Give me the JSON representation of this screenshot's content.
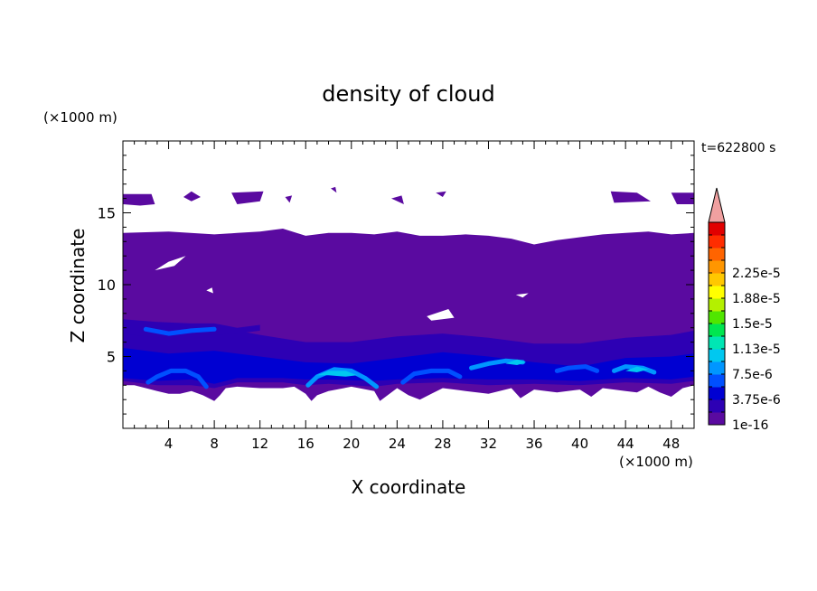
{
  "chart_data": {
    "type": "heatmap",
    "title": "density of cloud",
    "xlabel": "X coordinate",
    "ylabel": "Z coordinate",
    "x_unit": "(×1000 m)",
    "y_unit": "(×1000 m)",
    "time_label": "t=622800 s",
    "xlim": [
      0,
      50
    ],
    "ylim": [
      0,
      20
    ],
    "x_ticks": [
      4,
      8,
      12,
      16,
      20,
      24,
      28,
      32,
      36,
      40,
      44,
      48
    ],
    "y_ticks": [
      5,
      10,
      15
    ],
    "colorbar": {
      "labels": [
        "1e-16",
        "3.75e-6",
        "7.5e-6",
        "1.13e-5",
        "1.5e-5",
        "1.88e-5",
        "2.25e-5"
      ],
      "colors": [
        "#5a0aa0",
        "#2d00b4",
        "#0000d2",
        "#0050ff",
        "#0096ff",
        "#00c8f0",
        "#00e6b4",
        "#00e650",
        "#50e600",
        "#b4f000",
        "#ffff00",
        "#ffc800",
        "#ff9600",
        "#ff6400",
        "#ff2d00",
        "#e10000"
      ],
      "extend_color": "#f0a0a0"
    },
    "layers": {
      "main_cloud": {
        "level": "1e-16",
        "color": "#5a0aa0",
        "upper": [
          [
            0,
            13.6
          ],
          [
            4,
            13.7
          ],
          [
            8,
            13.5
          ],
          [
            10,
            13.6
          ],
          [
            12,
            13.7
          ],
          [
            14,
            13.9
          ],
          [
            16,
            13.4
          ],
          [
            18,
            13.6
          ],
          [
            20,
            13.6
          ],
          [
            22,
            13.5
          ],
          [
            24,
            13.7
          ],
          [
            26,
            13.4
          ],
          [
            28,
            13.4
          ],
          [
            30,
            13.5
          ],
          [
            32,
            13.4
          ],
          [
            34,
            13.2
          ],
          [
            36,
            12.8
          ],
          [
            38,
            13.1
          ],
          [
            40,
            13.3
          ],
          [
            42,
            13.5
          ],
          [
            44,
            13.6
          ],
          [
            46,
            13.7
          ],
          [
            48,
            13.5
          ],
          [
            50,
            13.6
          ]
        ],
        "lower": [
          [
            0,
            3.0
          ],
          [
            1,
            3.0
          ],
          [
            2,
            2.8
          ],
          [
            3,
            2.6
          ],
          [
            4,
            2.4
          ],
          [
            5,
            2.4
          ],
          [
            6,
            2.6
          ],
          [
            7,
            2.3
          ],
          [
            8,
            1.9
          ],
          [
            8.5,
            2.3
          ],
          [
            9,
            2.8
          ],
          [
            10,
            2.9
          ],
          [
            12,
            2.8
          ],
          [
            14,
            2.8
          ],
          [
            15,
            2.9
          ],
          [
            16,
            2.4
          ],
          [
            16.5,
            1.9
          ],
          [
            17,
            2.3
          ],
          [
            18,
            2.6
          ],
          [
            20,
            2.9
          ],
          [
            22,
            2.6
          ],
          [
            22.5,
            1.9
          ],
          [
            23,
            2.2
          ],
          [
            24,
            2.8
          ],
          [
            25,
            2.3
          ],
          [
            26,
            2.0
          ],
          [
            27,
            2.4
          ],
          [
            28,
            2.8
          ],
          [
            30,
            2.6
          ],
          [
            32,
            2.4
          ],
          [
            34,
            2.8
          ],
          [
            34.8,
            2.1
          ],
          [
            36,
            2.7
          ],
          [
            38,
            2.5
          ],
          [
            40,
            2.7
          ],
          [
            41,
            2.2
          ],
          [
            42,
            2.8
          ],
          [
            44,
            2.6
          ],
          [
            45,
            2.5
          ],
          [
            46,
            2.9
          ],
          [
            47,
            2.5
          ],
          [
            48,
            2.2
          ],
          [
            49,
            2.8
          ],
          [
            50,
            3.0
          ]
        ]
      },
      "bands": [
        {
          "level": "3.75e-6",
          "color": "#2d00b4",
          "upper": [
            [
              0,
              7.2
            ],
            [
              4,
              7.0
            ],
            [
              8,
              7.1
            ],
            [
              12,
              6.5
            ],
            [
              16,
              6.0
            ],
            [
              20,
              6.0
            ],
            [
              24,
              6.4
            ],
            [
              28,
              6.6
            ],
            [
              32,
              6.3
            ],
            [
              36,
              5.9
            ],
            [
              40,
              5.9
            ],
            [
              44,
              6.3
            ],
            [
              48,
              6.5
            ],
            [
              50,
              6.8
            ]
          ],
          "lower": [
            [
              0,
              3.3
            ],
            [
              3,
              3.0
            ],
            [
              6,
              3.0
            ],
            [
              8,
              2.8
            ],
            [
              10,
              3.2
            ],
            [
              14,
              3.2
            ],
            [
              16,
              3.0
            ],
            [
              18,
              3.1
            ],
            [
              22,
              2.9
            ],
            [
              24,
              3.1
            ],
            [
              28,
              3.2
            ],
            [
              32,
              3.0
            ],
            [
              36,
              3.1
            ],
            [
              40,
              3.0
            ],
            [
              44,
              3.2
            ],
            [
              48,
              3.1
            ],
            [
              50,
              3.3
            ]
          ]
        },
        {
          "level": "7.5e-6",
          "color": "#0000d2",
          "upper": [
            [
              0,
              5.6
            ],
            [
              4,
              5.2
            ],
            [
              8,
              5.4
            ],
            [
              12,
              5.0
            ],
            [
              16,
              4.6
            ],
            [
              20,
              4.5
            ],
            [
              24,
              4.9
            ],
            [
              28,
              5.3
            ],
            [
              32,
              5.0
            ],
            [
              36,
              4.6
            ],
            [
              40,
              4.3
            ],
            [
              44,
              4.9
            ],
            [
              48,
              5.0
            ],
            [
              50,
              5.2
            ]
          ],
          "lower": [
            [
              0,
              3.5
            ],
            [
              3,
              3.3
            ],
            [
              6,
              3.4
            ],
            [
              8,
              3.1
            ],
            [
              10,
              3.5
            ],
            [
              14,
              3.5
            ],
            [
              16,
              3.4
            ],
            [
              18,
              3.4
            ],
            [
              22,
              3.3
            ],
            [
              24,
              3.4
            ],
            [
              28,
              3.5
            ],
            [
              32,
              3.4
            ],
            [
              36,
              3.4
            ],
            [
              40,
              3.3
            ],
            [
              44,
              3.5
            ],
            [
              48,
              3.4
            ],
            [
              50,
              3.6
            ]
          ]
        }
      ],
      "upper_band": {
        "level": "3.75e-6",
        "color": "#2d00b4",
        "upper": [
          [
            0,
            7.6
          ],
          [
            3,
            7.4
          ],
          [
            6,
            7.3
          ],
          [
            8,
            7.3
          ],
          [
            10,
            7.0
          ],
          [
            12,
            7.2
          ]
        ],
        "lower": [
          [
            0,
            6.6
          ],
          [
            3,
            6.3
          ],
          [
            6,
            6.5
          ],
          [
            8,
            6.5
          ],
          [
            10,
            6.6
          ],
          [
            12,
            6.8
          ]
        ]
      },
      "arcs": [
        {
          "color": "#0050ff",
          "points": [
            [
              2.2,
              3.2
            ],
            [
              3,
              3.6
            ],
            [
              4.2,
              4.0
            ],
            [
              5.5,
              4.0
            ],
            [
              6.6,
              3.6
            ],
            [
              7.3,
              2.9
            ]
          ]
        },
        {
          "color": "#0096ff",
          "points": [
            [
              16.2,
              3.0
            ],
            [
              17,
              3.6
            ],
            [
              18.5,
              4.1
            ],
            [
              20,
              4.0
            ],
            [
              21.2,
              3.5
            ],
            [
              22.2,
              2.9
            ]
          ]
        },
        {
          "color": "#0050ff",
          "points": [
            [
              24.5,
              3.2
            ],
            [
              25.5,
              3.8
            ],
            [
              27,
              4.0
            ],
            [
              28.5,
              4.0
            ],
            [
              29.5,
              3.6
            ]
          ]
        },
        {
          "color": "#0096ff",
          "points": [
            [
              30.5,
              4.2
            ],
            [
              32,
              4.5
            ],
            [
              33.5,
              4.7
            ],
            [
              35,
              4.6
            ]
          ]
        },
        {
          "color": "#0096ff",
          "points": [
            [
              43,
              4.0
            ],
            [
              44,
              4.3
            ],
            [
              45.5,
              4.2
            ],
            [
              46.5,
              3.9
            ]
          ]
        },
        {
          "color": "#0050ff",
          "points": [
            [
              38,
              4.0
            ],
            [
              39,
              4.2
            ],
            [
              40.5,
              4.3
            ],
            [
              41.5,
              4.0
            ]
          ]
        },
        {
          "color": "#0050ff",
          "points": [
            [
              2,
              6.9
            ],
            [
              4,
              6.6
            ],
            [
              6,
              6.8
            ],
            [
              8,
              6.9
            ]
          ]
        }
      ],
      "patches": [
        {
          "color": "#00c8f0",
          "points": [
            [
              17,
              3.7
            ],
            [
              18,
              4.0
            ],
            [
              19.5,
              4.0
            ],
            [
              20.5,
              3.7
            ],
            [
              19.5,
              3.6
            ],
            [
              18,
              3.7
            ]
          ]
        },
        {
          "color": "#00c8f0",
          "points": [
            [
              44,
              4.0
            ],
            [
              45,
              4.3
            ],
            [
              46,
              4.1
            ],
            [
              45,
              3.9
            ]
          ]
        },
        {
          "color": "#00c8f0",
          "points": [
            [
              33.5,
              4.5
            ],
            [
              34.5,
              4.8
            ],
            [
              35.3,
              4.6
            ],
            [
              34.5,
              4.4
            ]
          ]
        }
      ],
      "upper_fragments": [
        [
          [
            0,
            16.3
          ],
          [
            2.5,
            16.3
          ],
          [
            2.8,
            15.6
          ],
          [
            1.5,
            15.5
          ],
          [
            0,
            15.6
          ]
        ],
        [
          [
            5.3,
            16.1
          ],
          [
            6.0,
            16.5
          ],
          [
            6.8,
            16.1
          ],
          [
            6.0,
            15.8
          ]
        ],
        [
          [
            9.5,
            16.4
          ],
          [
            12.3,
            16.5
          ],
          [
            12.0,
            15.8
          ],
          [
            10.0,
            15.6
          ]
        ],
        [
          [
            14.2,
            16.1
          ],
          [
            14.8,
            16.2
          ],
          [
            14.6,
            15.7
          ]
        ],
        [
          [
            18.2,
            16.7
          ],
          [
            18.6,
            16.8
          ],
          [
            18.7,
            16.4
          ]
        ],
        [
          [
            23.5,
            16.0
          ],
          [
            24.4,
            16.2
          ],
          [
            24.6,
            15.6
          ]
        ],
        [
          [
            27.4,
            16.4
          ],
          [
            28.3,
            16.5
          ],
          [
            28.0,
            16.1
          ]
        ],
        [
          [
            42.7,
            16.5
          ],
          [
            45.0,
            16.4
          ],
          [
            46.2,
            15.8
          ],
          [
            43.0,
            15.7
          ]
        ],
        [
          [
            48.0,
            16.4
          ],
          [
            50,
            16.4
          ],
          [
            50,
            15.6
          ],
          [
            48.5,
            15.6
          ]
        ]
      ],
      "holes": [
        [
          [
            2.8,
            11.0
          ],
          [
            4.5,
            11.3
          ],
          [
            5.5,
            12.0
          ],
          [
            4.0,
            11.6
          ]
        ],
        [
          [
            7.3,
            9.6
          ],
          [
            7.8,
            9.8
          ],
          [
            7.9,
            9.4
          ]
        ],
        [
          [
            26.6,
            7.8
          ],
          [
            28.5,
            8.3
          ],
          [
            29.0,
            7.7
          ],
          [
            27.0,
            7.5
          ]
        ],
        [
          [
            34.4,
            9.3
          ],
          [
            35.5,
            9.4
          ],
          [
            35.0,
            9.1
          ]
        ]
      ]
    }
  }
}
